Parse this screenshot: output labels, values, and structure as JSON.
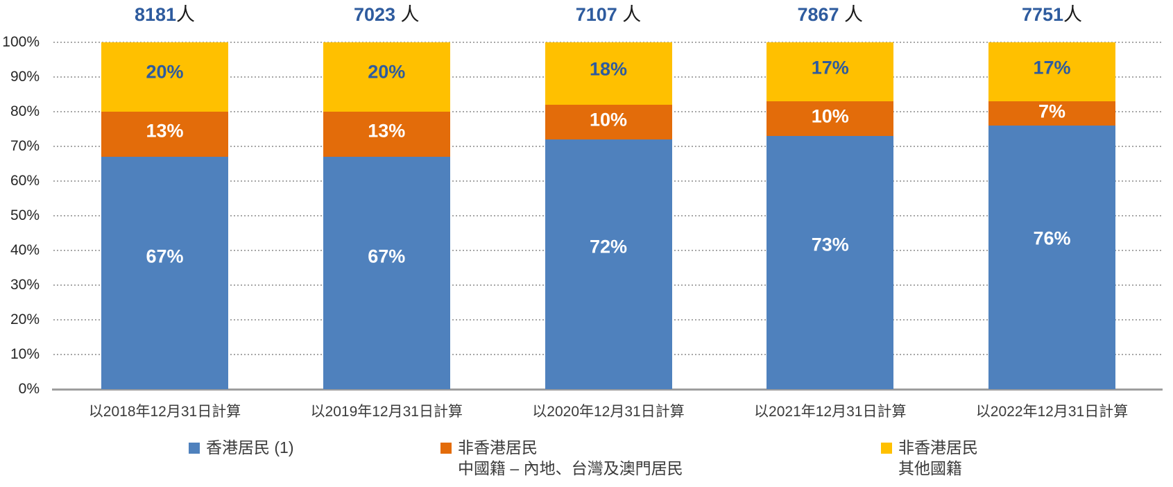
{
  "chart_data": {
    "type": "bar",
    "variant": "stacked-100-percent-column",
    "title": "",
    "xlabel": "",
    "ylabel": "",
    "ylim": [
      0,
      100
    ],
    "grid": "horizontal-dotted",
    "legend_position": "bottom",
    "y_ticks": [
      "100%",
      "90%",
      "80%",
      "70%",
      "60%",
      "50%",
      "40%",
      "30%",
      "20%",
      "10%",
      "0%"
    ],
    "categories": [
      "以2018年12月31日計算",
      "以2019年12月31日計算",
      "以2020年12月31日計算",
      "以2021年12月31日計算",
      "以2022年12月31日計算"
    ],
    "totals": [
      {
        "value": "8181",
        "unit": "人"
      },
      {
        "value": "7023",
        "unit": " 人"
      },
      {
        "value": "7107",
        "unit": " 人"
      },
      {
        "value": "7867",
        "unit": " 人"
      },
      {
        "value": "7751",
        "unit": "人"
      }
    ],
    "value_suffix": "%",
    "series": [
      {
        "key": "hk-residents",
        "name_lines": [
          "香港居民 (1)"
        ],
        "color": "#4F81BD",
        "label_color": "#FFFFFF",
        "values": [
          67,
          67,
          72,
          73,
          76
        ]
      },
      {
        "key": "non-hk-chinese",
        "name_lines": [
          "非香港居民",
          "中國籍 – 內地、台灣及澳門居民"
        ],
        "color": "#E36C0A",
        "label_color": "#FFFFFF",
        "values": [
          13,
          13,
          10,
          10,
          7
        ]
      },
      {
        "key": "non-hk-other",
        "name_lines": [
          "非香港居民",
          "其他國籍"
        ],
        "color": "#FFC000",
        "label_color": "#2E5B9E",
        "values": [
          20,
          20,
          18,
          17,
          17
        ]
      }
    ]
  },
  "colors": {
    "total_number": "#2E5B9E",
    "total_unit": "#1A1A1A",
    "axis_text": "#262626",
    "gridline": "#A6A6A6",
    "axis_line": "#9E9E9E",
    "background": "#FFFFFF"
  }
}
